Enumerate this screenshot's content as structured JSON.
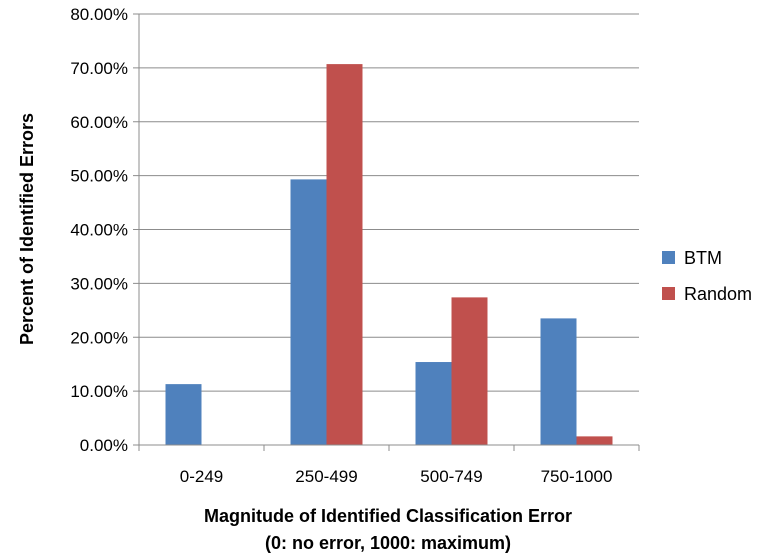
{
  "chart_data": {
    "type": "bar",
    "categories": [
      "0-249",
      "250-499",
      "500-749",
      "750-1000"
    ],
    "series": [
      {
        "name": "BTM",
        "values": [
          11.3,
          49.3,
          15.4,
          23.5
        ],
        "color": "#4f81bd"
      },
      {
        "name": "Random",
        "values": [
          0.0,
          70.7,
          27.4,
          1.6
        ],
        "color": "#c0504d"
      }
    ],
    "ylim": [
      0,
      80
    ],
    "yticks": [
      0,
      10,
      20,
      30,
      40,
      50,
      60,
      70,
      80
    ],
    "ytick_labels": [
      "0.00%",
      "10.00%",
      "20.00%",
      "30.00%",
      "40.00%",
      "50.00%",
      "60.00%",
      "70.00%",
      "80.00%"
    ],
    "ylabel": "Percent of Identified Errors",
    "xlabel_line1": "Magnitude of Identified Classification Error",
    "xlabel_line2": "(0: no error, 1000: maximum)",
    "grid": true,
    "legend_position": "right"
  }
}
